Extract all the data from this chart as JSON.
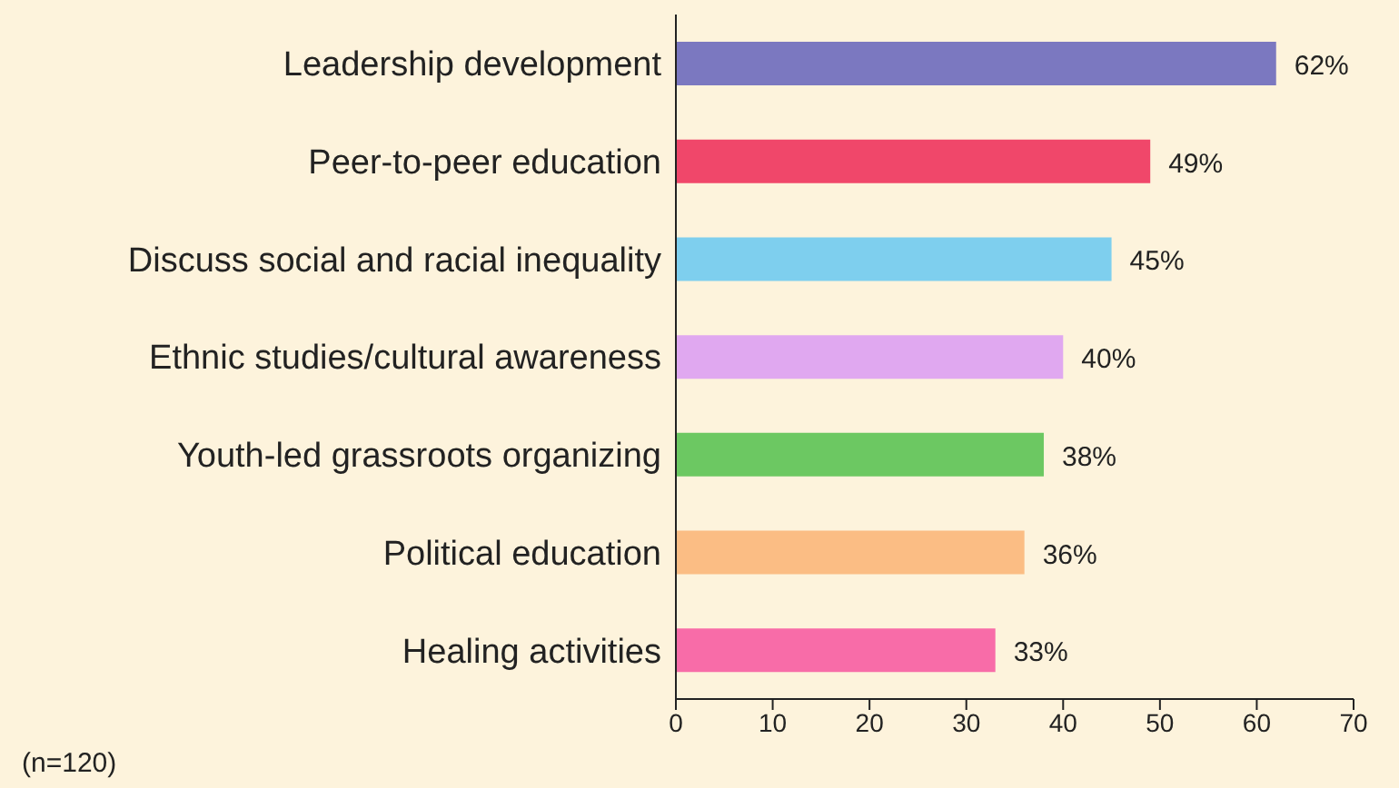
{
  "chart_data": {
    "type": "bar",
    "orientation": "horizontal",
    "categories": [
      "Leadership development",
      "Peer-to-peer education",
      "Discuss social and racial inequality",
      "Ethnic studies/cultural awareness",
      "Youth-led grassroots organizing",
      "Political education",
      "Healing activities"
    ],
    "values": [
      62,
      49,
      45,
      40,
      38,
      36,
      33
    ],
    "colors": [
      "#7b78c0",
      "#f0476a",
      "#7ecfee",
      "#e0a8f0",
      "#6cc862",
      "#fbbd84",
      "#f86ca8"
    ],
    "value_labels": [
      "62%",
      "49%",
      "45%",
      "40%",
      "38%",
      "36%",
      "33%"
    ],
    "xlim": [
      0,
      70
    ],
    "xticks": [
      0,
      10,
      20,
      30,
      40,
      50,
      60,
      70
    ],
    "grid": false,
    "annotations": [
      "(n=120)"
    ]
  }
}
